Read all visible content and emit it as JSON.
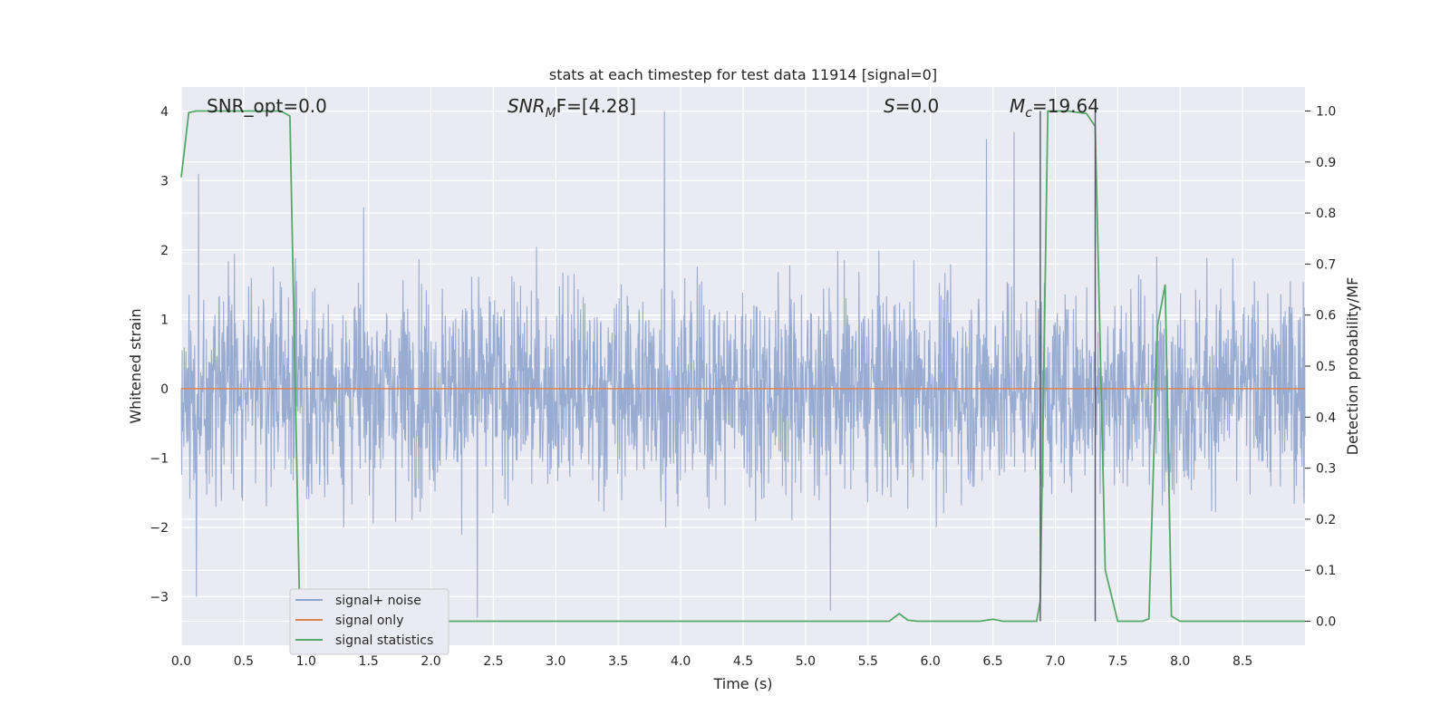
{
  "chart_data": {
    "type": "line",
    "title": "stats at each timestep for test data 11914 [signal=0]",
    "xlabel": "Time (s)",
    "ylabel": "Whitened strain",
    "y2label": "Detection probability/MF",
    "xlim": [
      0.0,
      9.0
    ],
    "ylim": [
      -3.7,
      4.35
    ],
    "y2lim": [
      -0.047,
      1.047
    ],
    "grid": true,
    "legend_position": "lower-left",
    "x_ticks": [
      "0.0",
      "0.5",
      "1.0",
      "1.5",
      "2.0",
      "2.5",
      "3.0",
      "3.5",
      "4.0",
      "4.5",
      "5.0",
      "5.5",
      "6.0",
      "6.5",
      "7.0",
      "7.5",
      "8.0",
      "8.5"
    ],
    "y_ticks": [
      "4",
      "3",
      "2",
      "1",
      "0",
      "−1",
      "−2",
      "−3"
    ],
    "y2_ticks": [
      "1.0",
      "0.9",
      "0.8",
      "0.7",
      "0.6",
      "0.5",
      "0.4",
      "0.3",
      "0.2",
      "0.1",
      "0.0"
    ],
    "annotations": {
      "snr_opt": "SNR_opt=0.0",
      "snr_mf_main": "SNR",
      "snr_mf_sub": "M",
      "snr_mf_rest": "F=[4.28]",
      "s_main": "S",
      "s_rest": "=0.0",
      "mc_main": "M",
      "mc_sub": "c",
      "mc_rest": "=19.64"
    },
    "vlines_x": [
      6.88,
      7.32
    ],
    "series": [
      {
        "name": "signal+ noise",
        "color": "#8fa4cc",
        "description_range": [
          -3.4,
          4.0
        ],
        "peaks": [
          [
            0.14,
            3.1
          ],
          [
            3.87,
            4.0
          ],
          [
            6.45,
            3.6
          ],
          [
            6.67,
            3.7
          ],
          [
            3.88,
            -2.0
          ],
          [
            2.37,
            -3.3
          ],
          [
            5.2,
            -3.2
          ],
          [
            0.12,
            -3.0
          ]
        ]
      },
      {
        "name": "signal only",
        "color": "#dd8452",
        "x": [
          0.0,
          9.0
        ],
        "y": [
          0.0,
          0.0
        ]
      },
      {
        "name": "signal statistics",
        "color": "#55a868",
        "axis": "right",
        "x": [
          0.0,
          0.06,
          0.12,
          0.2,
          0.3,
          0.5,
          0.7,
          0.8,
          0.87,
          0.95,
          1.0,
          5.5,
          5.6,
          5.67,
          5.75,
          5.82,
          5.9,
          6.4,
          6.5,
          6.58,
          6.65,
          6.85,
          6.88,
          6.94,
          7.0,
          7.1,
          7.25,
          7.32,
          7.4,
          7.5,
          7.7,
          7.75,
          7.82,
          7.88,
          7.93,
          8.0,
          9.0
        ],
        "y": [
          0.87,
          0.997,
          1.0,
          1.0,
          1.0,
          1.0,
          1.0,
          1.0,
          0.99,
          0.0,
          0.0,
          0.0,
          0.0,
          0.0,
          0.015,
          0.002,
          0.0,
          0.0,
          0.004,
          0.0,
          0.0,
          0.0,
          0.04,
          1.0,
          1.0,
          1.0,
          0.995,
          0.97,
          0.1,
          0.0,
          0.0,
          0.005,
          0.58,
          0.66,
          0.01,
          0.0,
          0.0
        ]
      }
    ]
  }
}
